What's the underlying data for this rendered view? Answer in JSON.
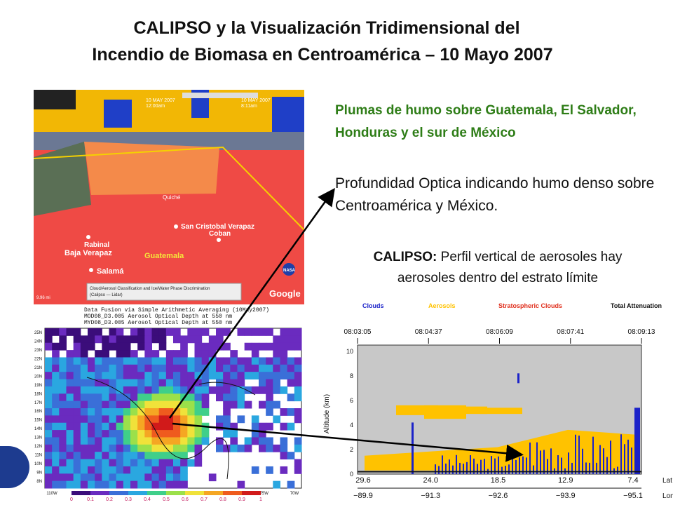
{
  "title": {
    "line1": "CALIPSO y la Visualización Tridimensional del",
    "line2": "Incendio de Biomasa en Centroamérica – 10 Mayo 2007"
  },
  "captions": {
    "plumes": "Plumas de humo sobre Guatemala, El Salvador,  Honduras y el sur de México",
    "optical_depth": "Profundidad Optica indicando humo denso sobre Centroamérica y México.",
    "calipso_bold": "CALIPSO:",
    "calipso_rest": " Perfil vertical de aerosoles hay aerosoles dentro del estrato límite"
  },
  "earth_view": {
    "timeline_left": "10 MAY 2007",
    "timeline_left_time": "12:00am",
    "timeline_right": "10 MAY 2007",
    "timeline_right_time": "8:11am",
    "places": [
      "Rabinal",
      "San Cristobal Verapaz",
      "Coban",
      "Baja Verapaz",
      "Guatemala",
      "Salamá",
      "Quiché"
    ],
    "legend_line1": "Cloud/Aerosol Classification and Ice/Water Phase Discrimination",
    "legend_line2": "(Calipso — Lidar)",
    "logo": "Google",
    "nasa": "NASA",
    "scale": "9.96 mi"
  },
  "aod_map": {
    "title_line1": "Data Fusion via Simple Arithmetic Averaging (10May2007)",
    "title_line2": "MOD08_D3.005 Aerosol Optical Depth at 550 nm",
    "title_line3": "MYD08_D3.005 Aerosol Optical Depth at 550 nm",
    "lat_labels": [
      "25N",
      "24N",
      "23N",
      "22N",
      "21N",
      "20N",
      "19N",
      "18N",
      "17N",
      "16N",
      "15N",
      "14N",
      "13N",
      "12N",
      "11N",
      "10N",
      "9N",
      "8N"
    ],
    "lon_labels": [
      "110W",
      "105W",
      "100W",
      "95W",
      "90W",
      "85W",
      "80W",
      "75W",
      "70W"
    ],
    "colorbar_labels": [
      "0",
      "0.1",
      "0.2",
      "0.3",
      "0.4",
      "0.5",
      "0.6",
      "0.7",
      "0.8",
      "0.9",
      "1"
    ],
    "colorbar_colors": [
      "#3b0d7a",
      "#6a2bbf",
      "#3a6fd8",
      "#2aa7e0",
      "#3fcf8a",
      "#9be04a",
      "#f0e23a",
      "#f5a623",
      "#ef5b1e",
      "#d11a1a"
    ]
  },
  "calipso_profile": {
    "legend": {
      "clouds": "Clouds",
      "aerosols": "Aerosols",
      "strat": "Stratospheric Clouds",
      "atten": "Total Attenuation"
    },
    "legend_colors": {
      "clouds": "#1b22c9",
      "aerosols": "#ffc200",
      "strat": "#e0301e",
      "atten": "#111111"
    },
    "times": [
      "08:03:05",
      "08:04:37",
      "08:06:09",
      "08:07:41",
      "08:09:13"
    ],
    "ylabel": "Altitude (km)",
    "yticks": [
      "10",
      "8",
      "6",
      "4",
      "2",
      "0"
    ],
    "lat": [
      "29.6",
      "24.0",
      "18.5",
      "12.9",
      "7.4"
    ],
    "lon": [
      "−89.9",
      "−91.3",
      "−92.6",
      "−93.9",
      "−95.1"
    ],
    "lat_axis": "Lat",
    "lon_axis": "Lon"
  }
}
